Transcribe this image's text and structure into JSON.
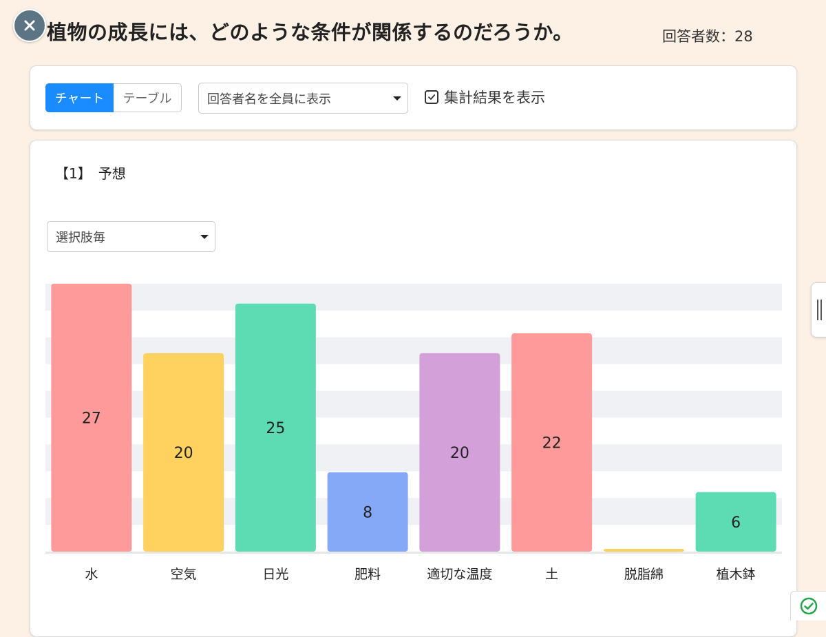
{
  "header": {
    "title": "植物の成長には、どのような条件が関係するのだろうか。",
    "respondents_label": "回答者数：28"
  },
  "toolbar": {
    "tabs": [
      {
        "label": "チャート",
        "active": true
      },
      {
        "label": "テーブル",
        "active": false
      }
    ],
    "names_select_value": "回答者名を全員に表示",
    "show_summary_label": "集計結果を表示",
    "show_summary_checked": true
  },
  "question": {
    "label": "【1】　予想",
    "view_select_value": "選択肢毎"
  },
  "icons": {
    "close": "close-icon",
    "dropdown": "chevron-down-icon",
    "checkbox": "check-icon",
    "side_panel": "drag-handle-icon",
    "status": "check-circle-icon"
  },
  "colors": {
    "accent": "#1a8cff",
    "background": "#fcf1e4",
    "status_green": "#22a447"
  },
  "chart_data": {
    "type": "bar",
    "categories": [
      "水",
      "空気",
      "日光",
      "肥料",
      "適切な温度",
      "土",
      "脱脂綿",
      "植木鉢"
    ],
    "values": [
      27,
      20,
      25,
      8,
      20,
      22,
      0,
      6
    ],
    "colors": [
      "#ff9a9a",
      "#ffd25f",
      "#5ddcb4",
      "#85a8f7",
      "#d4a0da",
      "#ff9a9a",
      "#ffd25f",
      "#5ddcb4"
    ],
    "data_labels": [
      "27",
      "20",
      "25",
      "8",
      "20",
      "22",
      "",
      "6"
    ],
    "ylim": [
      0,
      27
    ],
    "grid": true,
    "title": "",
    "xlabel": "",
    "ylabel": ""
  }
}
